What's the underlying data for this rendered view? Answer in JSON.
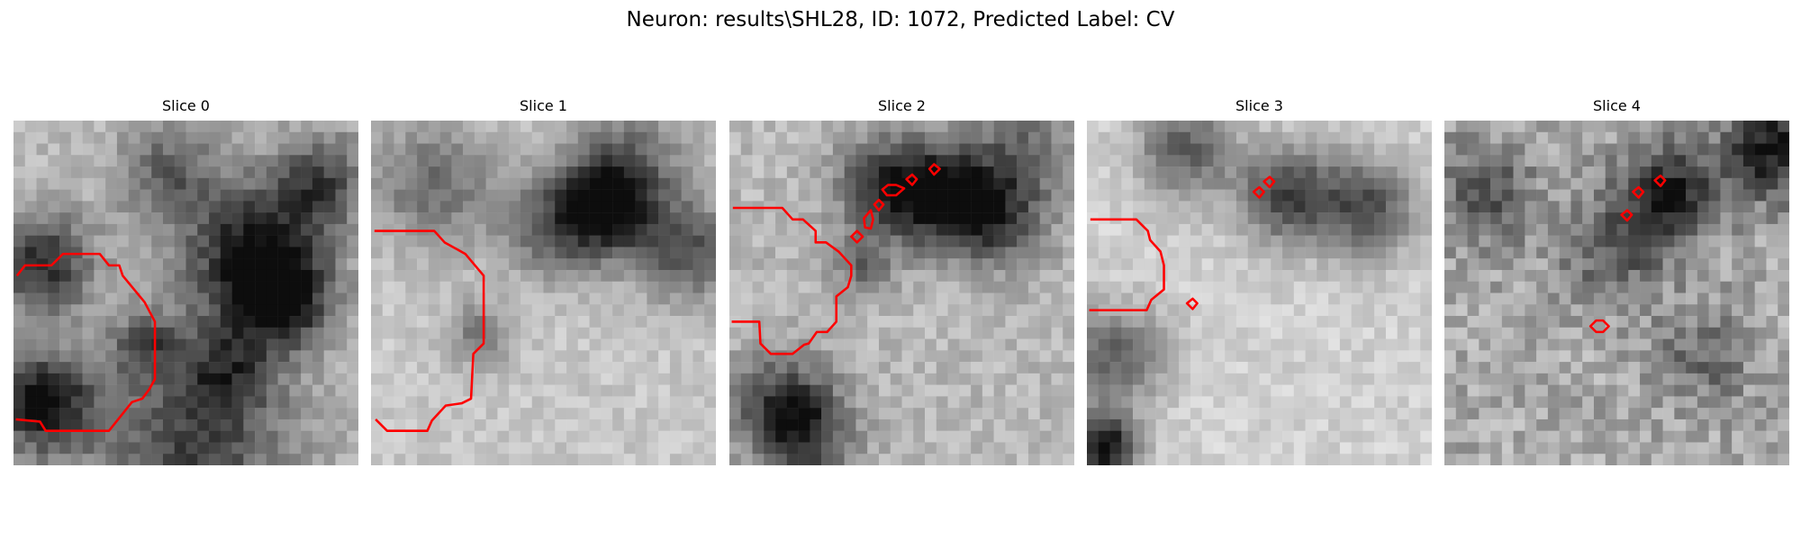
{
  "figure": {
    "title": "Neuron: results\\SHL28, ID: 1072, Predicted Label: CV",
    "colormap": "gray",
    "contour_color": "#ff0000",
    "grid_size": 30,
    "panels": [
      {
        "title": "Slice 0"
      },
      {
        "title": "Slice 1"
      },
      {
        "title": "Slice 2"
      },
      {
        "title": "Slice 3"
      },
      {
        "title": "Slice 4"
      }
    ]
  }
}
